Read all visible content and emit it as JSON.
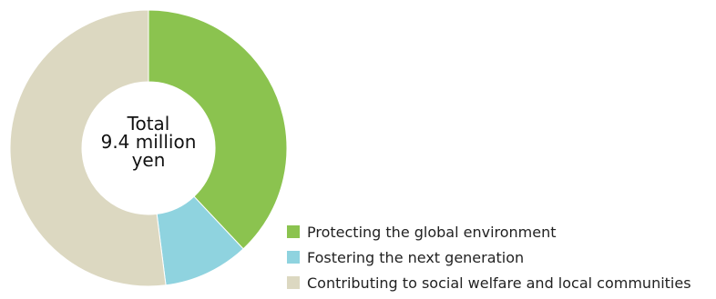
{
  "chart_data": {
    "type": "pie",
    "donut": true,
    "center_text": [
      "Total",
      "9.4 million",
      "yen"
    ],
    "slices": [
      {
        "label": "Protecting the global environment",
        "value": 38,
        "color": "#8bc34f"
      },
      {
        "label": "Fostering the next generation",
        "value": 10,
        "color": "#8fd3df"
      },
      {
        "label": "Contributing to social welfare and local communities",
        "value": 52,
        "color": "#dcd8c1"
      }
    ],
    "start_angle_deg": 0,
    "direction": "clockwise",
    "legend_position": "bottom-right"
  }
}
